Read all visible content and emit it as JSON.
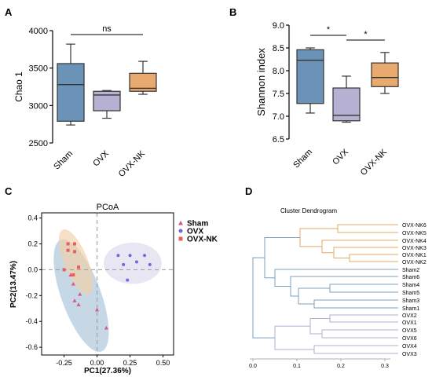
{
  "colors": {
    "sham": "#6b93b8",
    "ovx": "#b6b0d3",
    "ovxnk": "#e8aa6e",
    "sham_pt": "#d15a8a",
    "ovx_pt": "#6c6ad8",
    "ovxnk_pt": "#ee5b5b",
    "sham_ell": "#a8c2d9",
    "ovx_ell": "#ddd8ee",
    "ovxnk_ell": "#f3cfa6",
    "dendro_sham": "#7aa0bd",
    "dendro_ovx": "#b4aed1",
    "dendro_ovxnk": "#e3a865"
  },
  "chart_data": [
    {
      "panel": "A",
      "type": "box",
      "ylabel": "Chao 1",
      "ylim": [
        2500,
        4000
      ],
      "yticks": [
        "2500",
        "3000",
        "3500",
        "4000"
      ],
      "categories": [
        "Sham",
        "OVX",
        "OVX-NK"
      ],
      "boxes": [
        {
          "min": 2740,
          "q1": 2790,
          "median": 3280,
          "q3": 3560,
          "max": 3820
        },
        {
          "min": 2830,
          "q1": 2930,
          "median": 3140,
          "q3": 3190,
          "max": 3200
        },
        {
          "min": 3150,
          "q1": 3190,
          "median": 3230,
          "q3": 3430,
          "max": 3590
        }
      ],
      "significance": [
        {
          "from": 0,
          "to": 2,
          "label": "ns"
        }
      ]
    },
    {
      "panel": "B",
      "type": "box",
      "ylabel": "Shannon index",
      "ylim": [
        6.5,
        9.0
      ],
      "yticks": [
        "6.5",
        "7.0",
        "7.5",
        "8.0",
        "8.5",
        "9.0"
      ],
      "categories": [
        "Sham",
        "OVX",
        "OVX-NK"
      ],
      "boxes": [
        {
          "min": 7.07,
          "q1": 7.28,
          "median": 8.23,
          "q3": 8.46,
          "max": 8.5
        },
        {
          "min": 6.87,
          "q1": 6.9,
          "median": 7.02,
          "q3": 7.62,
          "max": 7.88
        },
        {
          "min": 7.5,
          "q1": 7.65,
          "median": 7.85,
          "q3": 8.17,
          "max": 8.4
        }
      ],
      "significance": [
        {
          "from": 0,
          "to": 1,
          "label": "*"
        },
        {
          "from": 1,
          "to": 2,
          "label": "*"
        }
      ]
    },
    {
      "panel": "C",
      "type": "scatter",
      "title": "PCoA",
      "xlabel": "PC1(27.36%)",
      "ylabel": "PC2(13.47%)",
      "xlim": [
        -0.42,
        0.58
      ],
      "ylim": [
        -0.66,
        0.44
      ],
      "xticks": [
        "-0.25",
        "0.00",
        "0.25",
        "0.50"
      ],
      "yticks": [
        "-0.6",
        "-0.4",
        "-0.2",
        "0.0",
        "0.2",
        "0.4"
      ],
      "legend_position": "top-right",
      "series": [
        {
          "name": "Sham",
          "points": [
            [
              -0.2,
              -0.04
            ],
            [
              -0.18,
              -0.11
            ],
            [
              -0.13,
              -0.19
            ],
            [
              -0.17,
              -0.24
            ],
            [
              -0.14,
              -0.27
            ],
            [
              0.0,
              -0.31
            ],
            [
              0.07,
              -0.45
            ]
          ]
        },
        {
          "name": "OVX",
          "points": [
            [
              0.16,
              0.11
            ],
            [
              0.25,
              0.11
            ],
            [
              0.36,
              0.11
            ],
            [
              0.3,
              0.06
            ],
            [
              0.2,
              0.04
            ],
            [
              0.4,
              0.04
            ],
            [
              0.23,
              -0.08
            ]
          ]
        },
        {
          "name": "OVX-NK",
          "points": [
            [
              -0.22,
              0.2
            ],
            [
              -0.17,
              0.2
            ],
            [
              -0.22,
              0.15
            ],
            [
              -0.17,
              0.14
            ],
            [
              -0.14,
              0.02
            ],
            [
              -0.25,
              0.0
            ],
            [
              -0.18,
              -0.04
            ]
          ]
        }
      ]
    },
    {
      "panel": "D",
      "type": "dendrogram",
      "title": "Cluster Dendrogram",
      "xticks": [
        "0.0",
        "0.1",
        "0.2",
        "0.3"
      ],
      "leaves": [
        "OVX-NK6",
        "OVX-NK5",
        "OVX-NK4",
        "OVX-NK3",
        "OVX-NK1",
        "OVX-NK2",
        "Sham2",
        "Sham6",
        "Sham4",
        "Sham5",
        "Sham3",
        "Sham1",
        "OVX2",
        "OVX1",
        "OVX5",
        "OVX6",
        "OVX4",
        "OVX3"
      ]
    }
  ],
  "panels": {
    "a": "A",
    "b": "B",
    "c": "C",
    "d": "D"
  }
}
